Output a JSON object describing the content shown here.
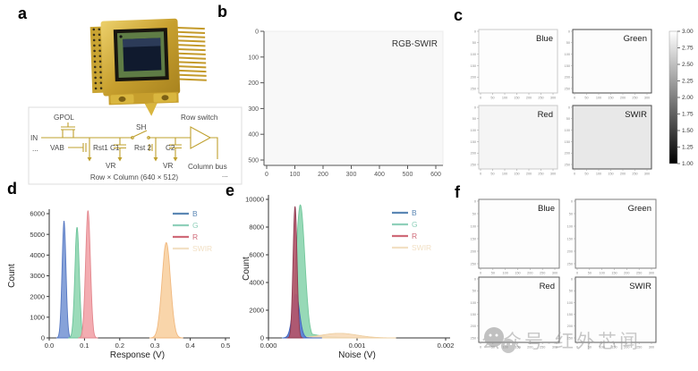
{
  "panel_labels": {
    "a": "a",
    "b": "b",
    "c": "c",
    "d": "d",
    "e": "e",
    "f": "f"
  },
  "panel_a": {
    "chip_photo": "gold packaged RGB-SWIR focal plane array",
    "circuit": {
      "in": "IN",
      "dots_left": "...",
      "gpol": "GPOL",
      "vab": "VAB",
      "rst1": "Rst1",
      "c1": "C1",
      "sh": "SH",
      "rst2": "Rst 2",
      "c2": "C2",
      "vr1": "VR",
      "vr2": "VR",
      "row_switch": "Row switch",
      "column_bus": "Column bus",
      "dots_right": "...",
      "caption": "Row × Column (640 × 512)"
    }
  },
  "panel_b": {
    "title": "RGB-SWIR",
    "y_ticks": [
      "0",
      "100",
      "200",
      "300",
      "400",
      "500"
    ],
    "x_ticks": [
      "0",
      "100",
      "200",
      "300",
      "400",
      "500",
      "600"
    ],
    "image_fill": "#f8f8f8"
  },
  "panel_c": {
    "subpanels": [
      {
        "label": "Blue",
        "fill": "#fdfdfd",
        "border": "#c9c9c9"
      },
      {
        "label": "Green",
        "fill": "#fcfcfc",
        "border": "#4a4a4a"
      },
      {
        "label": "Red",
        "fill": "#f5f5f5",
        "border": "#c9c9c9"
      },
      {
        "label": "SWIR",
        "fill": "#e8e8e8",
        "border": "#4a4a4a"
      }
    ],
    "mini_y_ticks": [
      "0",
      "50",
      "100",
      "150",
      "200",
      "250"
    ],
    "mini_x_ticks": [
      "0",
      "50",
      "100",
      "150",
      "200",
      "250",
      "300"
    ],
    "colorbar": {
      "tick_labels": [
        "3.00",
        "2.75",
        "2.50",
        "2.25",
        "2.00",
        "1.75",
        "1.50",
        "1.25",
        "1.00"
      ],
      "top_color": "#ffffff",
      "bottom_color": "#000000"
    }
  },
  "panel_f": {
    "subpanels": [
      {
        "label": "Blue",
        "fill": "#fdfdfd",
        "border": "#7d7d7d"
      },
      {
        "label": "Green",
        "fill": "#fdfdfd",
        "border": "#7d7d7d"
      },
      {
        "label": "Red",
        "fill": "#fdfdfd",
        "border": "#5a5a5a"
      },
      {
        "label": "SWIR",
        "fill": "#fdfdfd",
        "border": "#5a5a5a"
      }
    ],
    "mini_y_ticks": [
      "0",
      "50",
      "100",
      "150",
      "200",
      "250"
    ],
    "mini_x_ticks": [
      "0",
      "50",
      "100",
      "150",
      "200",
      "250",
      "300"
    ]
  },
  "chart_data": [
    {
      "id": "d",
      "type": "area",
      "title": "",
      "xlabel": "Response (V)",
      "ylabel": "Count",
      "xlim": [
        0,
        0.5
      ],
      "ylim": [
        0,
        6000
      ],
      "x_ticks": [
        "0.0",
        "0.1",
        "0.2",
        "0.3",
        "0.4",
        "0.5"
      ],
      "y_ticks": [
        "0",
        "1000",
        "2000",
        "3000",
        "4000",
        "5000",
        "6000"
      ],
      "legend_position": "top-right",
      "legend": [
        {
          "label": "B",
          "color": "#5b87b4"
        },
        {
          "label": "G",
          "color": "#8fd0ba"
        },
        {
          "label": "R",
          "color": "#cf6a78"
        },
        {
          "label": "SWIR",
          "color": "#f2e0c4"
        }
      ],
      "series": [
        {
          "name": "B",
          "peak_x": 0.042,
          "peak_count": 5650,
          "sigma": 0.0055,
          "tail_amp": 0.05,
          "tail_len": 0.005,
          "fill": "#7e9bd6",
          "edge": "#5577c2"
        },
        {
          "name": "G",
          "peak_x": 0.079,
          "peak_count": 5350,
          "sigma": 0.0062,
          "tail_amp": 0.05,
          "tail_len": 0.006,
          "fill": "#93d8b4",
          "edge": "#6cc39a"
        },
        {
          "name": "R",
          "peak_x": 0.11,
          "peak_count": 6150,
          "sigma": 0.0068,
          "tail_amp": 0.04,
          "tail_len": 0.005,
          "fill": "#f2a6ab",
          "edge": "#e2868d"
        },
        {
          "name": "SWIR",
          "peak_x": 0.332,
          "peak_count": 4600,
          "sigma": 0.012,
          "tail_amp": 0.03,
          "tail_len": 0.006,
          "fill": "#f9d2a4",
          "edge": "#f0b87e"
        }
      ]
    },
    {
      "id": "e",
      "type": "area",
      "title": "",
      "xlabel": "Noise (V)",
      "ylabel": "Count",
      "xlim": [
        0,
        0.002
      ],
      "ylim": [
        0,
        10000
      ],
      "x_ticks": [
        "0.000",
        "0.001",
        "0.002"
      ],
      "y_ticks": [
        "0",
        "2000",
        "4000",
        "6000",
        "8000",
        "10000"
      ],
      "legend_position": "top-right",
      "legend": [
        {
          "label": "B",
          "color": "#5b87b4"
        },
        {
          "label": "G",
          "color": "#8fd0ba"
        },
        {
          "label": "R",
          "color": "#cf6a78"
        },
        {
          "label": "SWIR",
          "color": "#f2e0c4"
        }
      ],
      "series": [
        {
          "name": "G",
          "peak_x": 0.00036,
          "peak_count": 9600,
          "sigma": 5e-05,
          "tail_amp": 0.06,
          "tail_len": 0.00018,
          "fill": "#8fd6b1",
          "edge": "#74c79c"
        },
        {
          "name": "SWIR",
          "peak_x": 0.0008,
          "peak_count": 330,
          "sigma": 0.0002,
          "tail_amp": 0.5,
          "tail_len": 0.00012,
          "fill": "#f7dcbb",
          "edge": "#eecfa2"
        },
        {
          "name": "B",
          "peak_x": 0.00031,
          "peak_count": 3150,
          "sigma": 4e-05,
          "tail_amp": 0.04,
          "tail_len": 7e-05,
          "fill": "#5b7fd6",
          "edge": "#3f63c0"
        },
        {
          "name": "R",
          "peak_x": 0.0003,
          "peak_count": 9500,
          "sigma": 2.2e-05,
          "tail_amp": 0,
          "tail_len": 0.0001,
          "fill": "#b4566b",
          "edge": "#8e3a50"
        }
      ]
    }
  ],
  "watermark": {
    "text": "公众号·红外芯闻"
  }
}
